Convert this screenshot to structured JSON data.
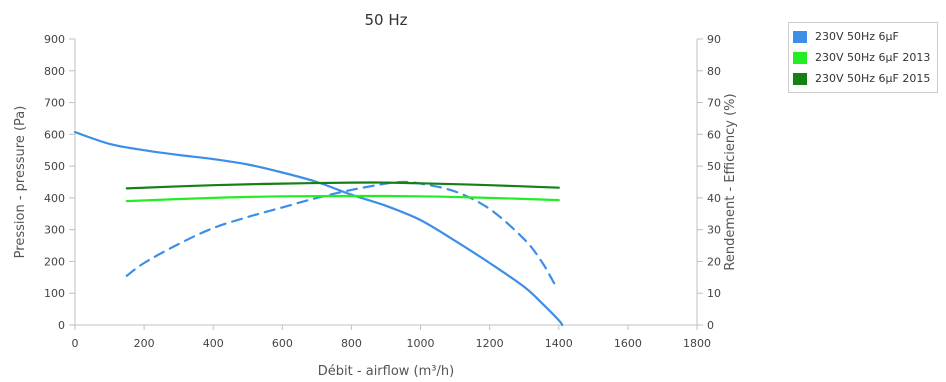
{
  "chart_data": {
    "type": "line",
    "title": "50 Hz",
    "xlabel": "Débit - airflow (m³/h)",
    "ylabel_left": "Pression - pressure (Pa)",
    "ylabel_right": "Rendement - Efficiency (%)",
    "xlim": [
      0,
      1800
    ],
    "ylim_left": [
      0,
      900
    ],
    "ylim_right": [
      0,
      90
    ],
    "x_ticks": [
      "0",
      "200",
      "400",
      "600",
      "800",
      "1000",
      "1200",
      "1400",
      "1600",
      "1800"
    ],
    "y_left_ticks": [
      "0",
      "100",
      "200",
      "300",
      "400",
      "500",
      "600",
      "700",
      "800",
      "900"
    ],
    "y_right_ticks": [
      "0",
      "10",
      "20",
      "30",
      "40",
      "50",
      "60",
      "70",
      "80",
      "90"
    ],
    "grid": false,
    "legend_placement": "top-right",
    "series": [
      {
        "name": "230V 50Hz 6µF",
        "color": "#3d8ee8",
        "axis": "left",
        "style": "solid",
        "x": [
          0,
          100,
          200,
          300,
          400,
          500,
          600,
          700,
          800,
          900,
          1000,
          1100,
          1200,
          1300,
          1350,
          1400,
          1410
        ],
        "y": [
          607,
          570,
          550,
          535,
          522,
          505,
          480,
          450,
          410,
          375,
          330,
          265,
          195,
          120,
          70,
          15,
          0
        ]
      },
      {
        "name": "",
        "color": "#3d8ee8",
        "axis": "right",
        "style": "dashed",
        "x": [
          150,
          200,
          300,
          400,
          500,
          600,
          700,
          800,
          900,
          950,
          1000,
          1100,
          1200,
          1300,
          1350,
          1390
        ],
        "y": [
          15.5,
          19.5,
          25.5,
          30.5,
          34,
          37,
          40,
          42.5,
          44.5,
          45,
          44.5,
          42,
          36.5,
          27,
          20,
          12.5
        ]
      },
      {
        "name": "230V 50Hz 6µF 2013",
        "color": "#22ee22",
        "axis": "right",
        "style": "solid",
        "x": [
          150,
          400,
          600,
          800,
          1000,
          1200,
          1400
        ],
        "y": [
          39,
          40,
          40.5,
          40.6,
          40.5,
          40,
          39.3
        ]
      },
      {
        "name": "230V 50Hz 6µF 2015",
        "color": "#167f16",
        "axis": "right",
        "style": "solid",
        "x": [
          150,
          400,
          600,
          800,
          900,
          1000,
          1200,
          1400
        ],
        "y": [
          43,
          44,
          44.5,
          44.8,
          44.8,
          44.6,
          44,
          43.2
        ]
      }
    ]
  }
}
